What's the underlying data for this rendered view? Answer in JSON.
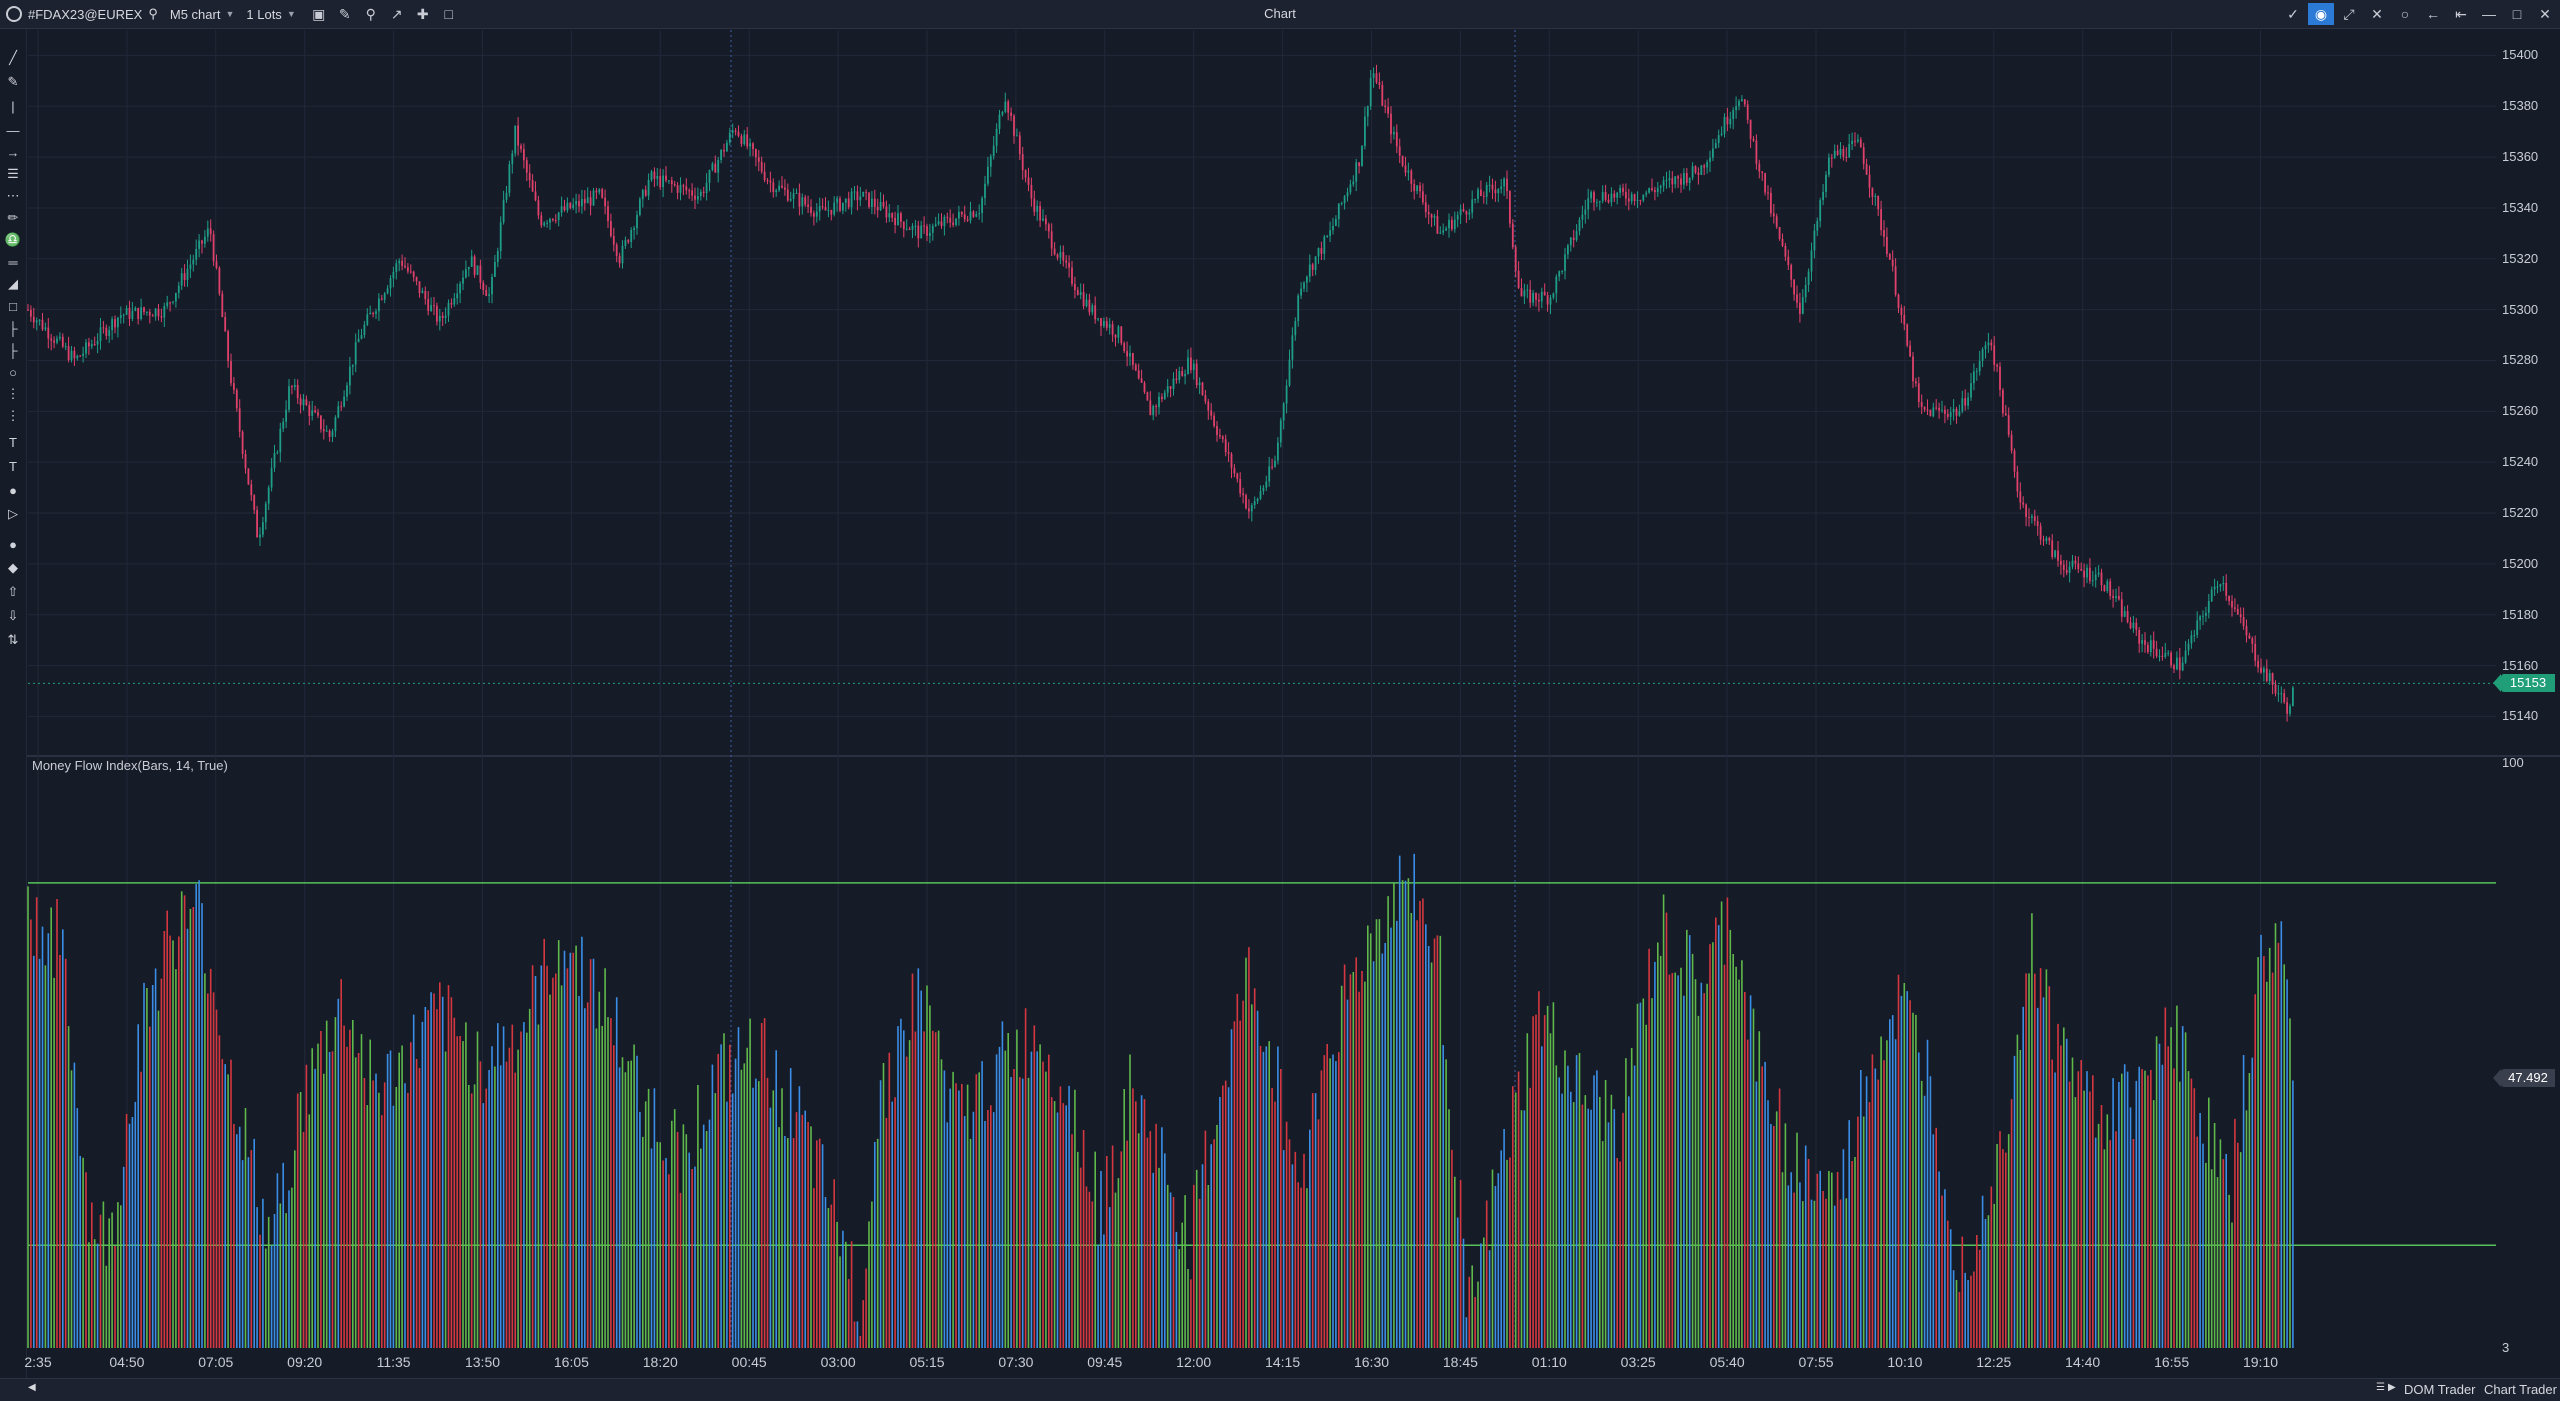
{
  "toolbar": {
    "symbol": "#FDAX23@EUREX",
    "timeframe": "M5 chart",
    "lots": "1 Lots",
    "title": "Chart"
  },
  "price_axis": {
    "labels": [
      "15400",
      "15380",
      "15360",
      "15340",
      "15320",
      "15300",
      "15280",
      "15260",
      "15240",
      "15220",
      "15200",
      "15180",
      "15160",
      "15140"
    ],
    "current_price": "15153",
    "current_price_color": "#1f9e78"
  },
  "indicator": {
    "label": "Money Flow Index(Bars, 14, True)",
    "axis_top": "100",
    "axis_bottom": "3",
    "current_value": "47.492",
    "upper_level": 80,
    "lower_level": 20,
    "level_color": "#57c25a",
    "bar_colors": [
      "#3a8ee6",
      "#5fb84a",
      "#d4373f"
    ]
  },
  "time_axis": {
    "labels": [
      "2:35",
      "04:50",
      "07:05",
      "09:20",
      "11:35",
      "13:50",
      "16:05",
      "18:20",
      "00:45",
      "03:00",
      "05:15",
      "07:30",
      "09:45",
      "12:00",
      "14:15",
      "16:30",
      "18:45",
      "01:10",
      "03:25",
      "05:40",
      "07:55",
      "10:10",
      "12:25",
      "14:40",
      "16:55",
      "19:10"
    ]
  },
  "colors": {
    "background": "#161b28",
    "candle_up": "#1e9e88",
    "candle_down": "#e0416a",
    "grid": "#222839"
  },
  "icons": {
    "left_tools": [
      "line-tool-icon",
      "pencil-icon",
      "vertical-line-icon",
      "horizontal-line-icon",
      "arrow-icon",
      "fib-icon",
      "pattern-icon",
      "brush-icon",
      "paint-icon",
      "channel-icon",
      "triangle-icon",
      "rectangle-icon",
      "bars-icon",
      "bars-left-icon",
      "ellipse-icon",
      "dots-icon",
      "dots-vertical-icon",
      "text-bold-icon",
      "text-icon",
      "label-icon",
      "tag-icon",
      "circle-icon",
      "diamond-icon",
      "arrow-up-icon",
      "arrow-down-icon",
      "sort-icon"
    ]
  },
  "bottom_bar": {
    "dom_trader": "DOM Trader",
    "chart_trader": "Chart Trader"
  }
}
